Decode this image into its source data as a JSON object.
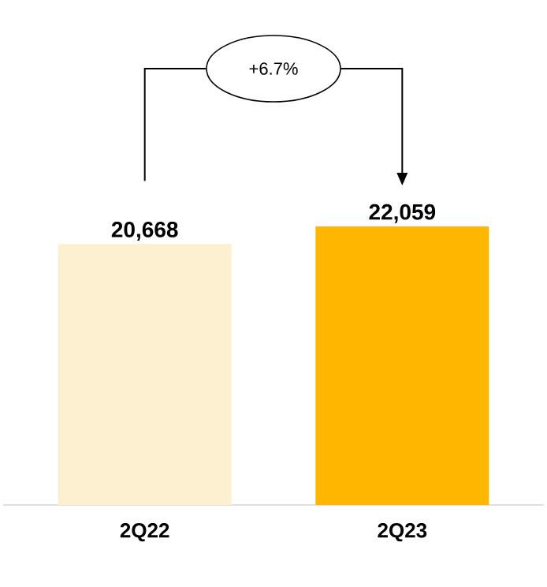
{
  "chart_data": {
    "type": "bar",
    "categories": [
      "2Q22",
      "2Q23"
    ],
    "values": [
      20668,
      22059
    ],
    "colors": [
      "#fdf0d0",
      "#ffb600"
    ],
    "value_labels": [
      "20,668",
      "22,059"
    ],
    "annotations": [
      "+6.7%"
    ]
  }
}
